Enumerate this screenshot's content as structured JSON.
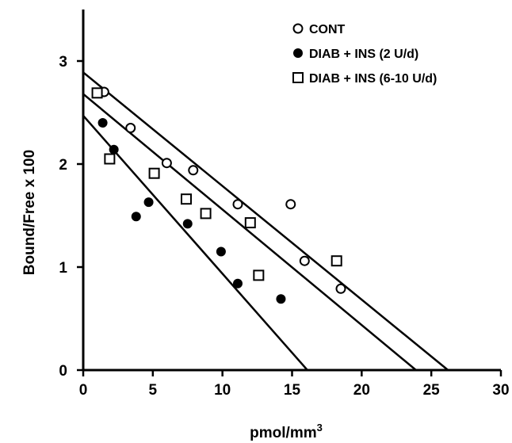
{
  "chart_data": {
    "type": "scatter",
    "xlabel": "pmol/mm",
    "xlabel_sup": "3",
    "ylabel": "Bound/Free x 100",
    "xlim": [
      0,
      30
    ],
    "ylim": [
      0,
      3.5
    ],
    "x_ticks": [
      0,
      5,
      10,
      15,
      20,
      25,
      30
    ],
    "y_ticks": [
      0,
      1,
      2,
      3
    ],
    "grid": false,
    "legend_position": "top-right",
    "series": [
      {
        "name": "CONT",
        "marker": "open-circle",
        "points": [
          [
            1.5,
            2.7
          ],
          [
            3.4,
            2.35
          ],
          [
            6.0,
            2.01
          ],
          [
            7.9,
            1.94
          ],
          [
            11.1,
            1.61
          ],
          [
            14.9,
            1.61
          ],
          [
            15.9,
            1.06
          ],
          [
            18.5,
            0.79
          ]
        ],
        "fit_line": [
          [
            0,
            2.89
          ],
          [
            26.2,
            0
          ]
        ]
      },
      {
        "name": "DIAB + INS (2 U/d)",
        "marker": "filled-circle",
        "points": [
          [
            1.4,
            2.4
          ],
          [
            2.2,
            2.14
          ],
          [
            3.8,
            1.49
          ],
          [
            4.7,
            1.63
          ],
          [
            7.5,
            1.42
          ],
          [
            9.9,
            1.15
          ],
          [
            11.1,
            0.84
          ],
          [
            14.2,
            0.69
          ]
        ],
        "fit_line": [
          [
            0,
            2.47
          ],
          [
            16.1,
            0
          ]
        ]
      },
      {
        "name": "DIAB + INS (6-10 U/d)",
        "marker": "open-square",
        "points": [
          [
            1.0,
            2.69
          ],
          [
            1.9,
            2.05
          ],
          [
            5.1,
            1.91
          ],
          [
            7.4,
            1.66
          ],
          [
            8.8,
            1.52
          ],
          [
            12.0,
            1.43
          ],
          [
            12.6,
            0.92
          ],
          [
            18.2,
            1.06
          ]
        ],
        "fit_line": [
          [
            0,
            2.68
          ],
          [
            23.9,
            0
          ]
        ]
      }
    ]
  }
}
